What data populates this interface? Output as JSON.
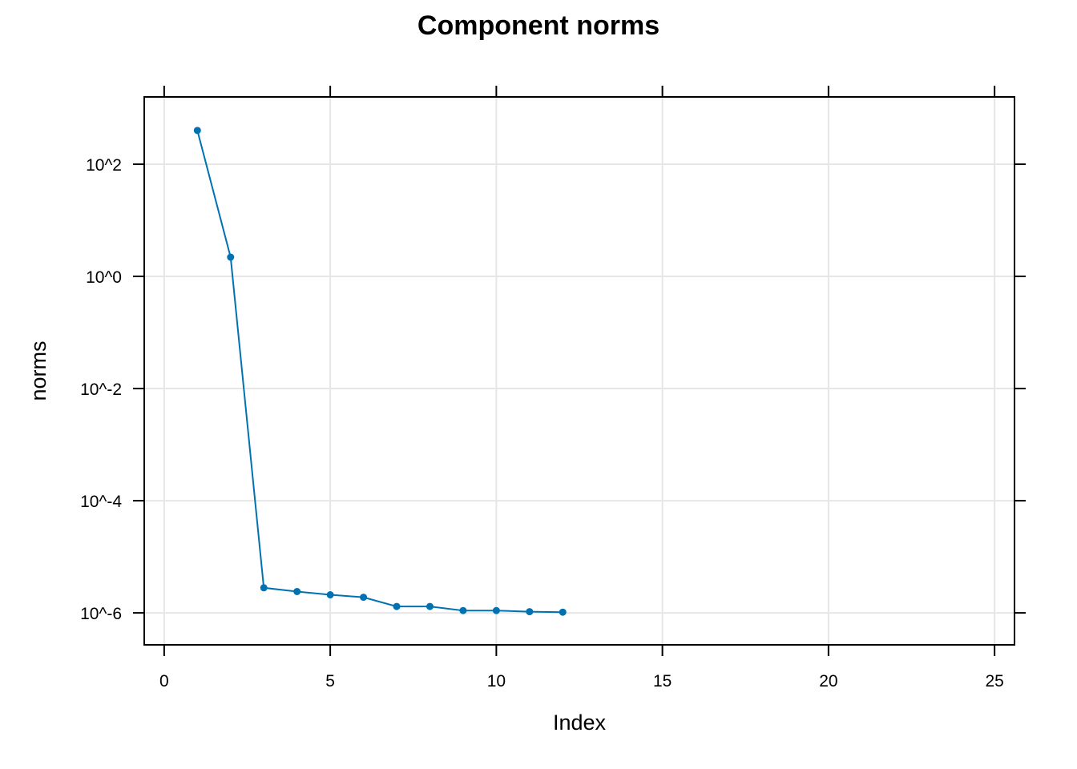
{
  "chart_data": {
    "type": "line",
    "title": "Component norms",
    "xlabel": "Index",
    "ylabel": "norms",
    "xlim": [
      -0.6,
      25.6
    ],
    "ylim_log10": [
      -6.57,
      3.2
    ],
    "y_scale": "log10",
    "grid": true,
    "x_ticks": [
      0,
      5,
      10,
      15,
      20,
      25
    ],
    "x_tick_labels": [
      "0",
      "5",
      "10",
      "15",
      "20",
      "25"
    ],
    "y_ticks_log10": [
      2,
      0,
      -2,
      -4,
      -6
    ],
    "y_tick_labels": [
      "10^2",
      "10^0",
      "10^-2",
      "10^-4",
      "10^-6"
    ],
    "color": "#0072B2",
    "series": [
      {
        "x": [
          1,
          2,
          3,
          4,
          5,
          6,
          7,
          8,
          9,
          10,
          11,
          12
        ],
        "y": [
          400,
          2.2,
          2.8e-06,
          2.4e-06,
          2.1e-06,
          1.9e-06,
          1.3e-06,
          1.3e-06,
          1.1e-06,
          1.1e-06,
          1.05e-06,
          1.03e-06
        ]
      }
    ]
  }
}
